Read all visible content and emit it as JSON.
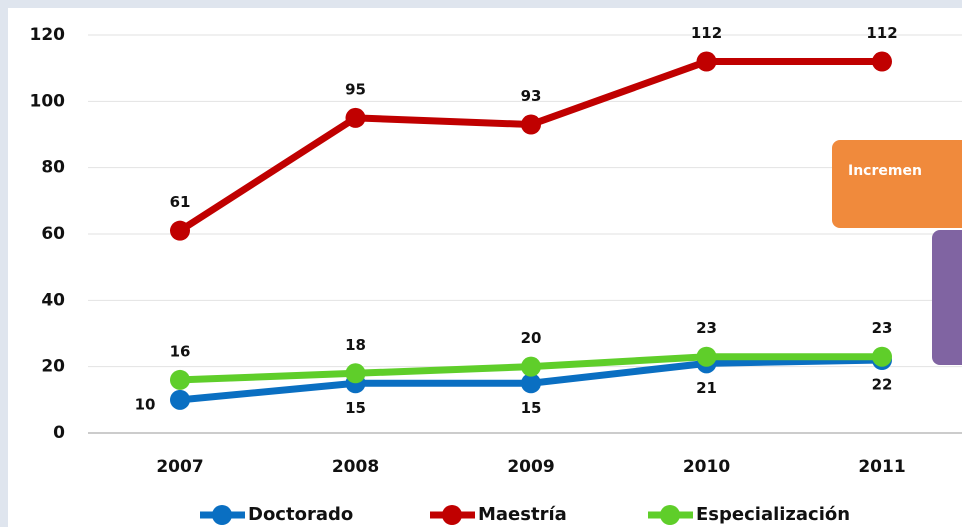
{
  "chart_data": {
    "type": "line",
    "categories": [
      "2007",
      "2008",
      "2009",
      "2010",
      "2011"
    ],
    "series": [
      {
        "name": "Doctorado",
        "color": "#0a6fc2",
        "values": [
          10,
          15,
          15,
          21,
          22
        ]
      },
      {
        "name": "Maestría",
        "color": "#c00000",
        "values": [
          61,
          95,
          93,
          112,
          112
        ]
      },
      {
        "name": "Especialización",
        "color": "#5fce2a",
        "values": [
          16,
          18,
          20,
          23,
          23
        ]
      }
    ],
    "ylim": [
      0,
      120
    ],
    "yticks": [
      0,
      20,
      40,
      60,
      80,
      100,
      120
    ],
    "grid": true,
    "annotation": "Incremen"
  }
}
